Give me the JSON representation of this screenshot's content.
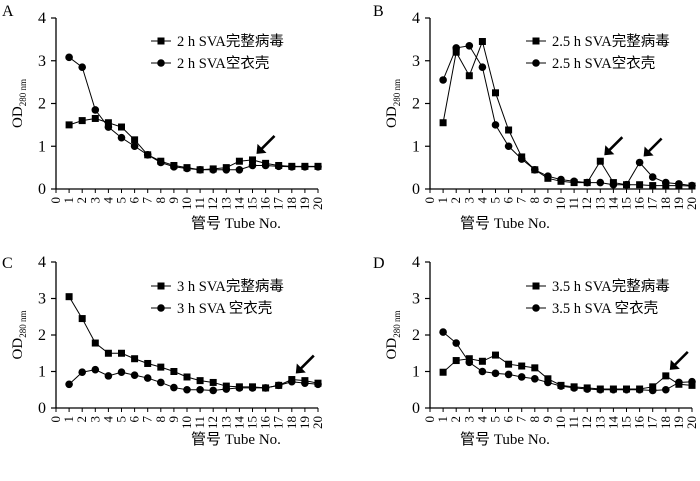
{
  "figure": {
    "ylabel_main": "OD",
    "ylabel_sub": "280 nm",
    "xlabel": "管号 Tube No."
  },
  "chart_data": [
    {
      "panel": "A",
      "type": "line",
      "x": [
        1,
        2,
        3,
        4,
        5,
        6,
        7,
        8,
        9,
        10,
        11,
        12,
        13,
        14,
        15,
        16,
        17,
        18,
        19,
        20
      ],
      "xlim": [
        0,
        20
      ],
      "ylim": [
        0,
        4
      ],
      "yticks": [
        0,
        1,
        2,
        3,
        4
      ],
      "xlabel": "管号 Tube No.",
      "ylabel": "OD280 nm",
      "legend_position": "top-right",
      "arrows_at_tube": [
        15
      ],
      "series": [
        {
          "name": "2 h SVA完整病毒",
          "marker": "square",
          "values": [
            1.5,
            1.6,
            1.65,
            1.55,
            1.45,
            1.15,
            0.8,
            0.65,
            0.55,
            0.5,
            0.45,
            0.47,
            0.5,
            0.65,
            0.68,
            0.6,
            0.55,
            0.53,
            0.53,
            0.53
          ]
        },
        {
          "name": "2 h SVA空衣壳",
          "marker": "circle",
          "values": [
            3.08,
            2.85,
            1.85,
            1.45,
            1.2,
            1.0,
            0.8,
            0.62,
            0.52,
            0.48,
            0.45,
            0.45,
            0.45,
            0.45,
            0.55,
            0.55,
            0.53,
            0.52,
            0.52,
            0.52
          ]
        }
      ]
    },
    {
      "panel": "B",
      "type": "line",
      "x": [
        1,
        2,
        3,
        4,
        5,
        6,
        7,
        8,
        9,
        10,
        11,
        12,
        13,
        14,
        15,
        16,
        17,
        18,
        19,
        20
      ],
      "xlim": [
        0,
        20
      ],
      "ylim": [
        0,
        4
      ],
      "yticks": [
        0,
        1,
        2,
        3,
        4
      ],
      "xlabel": "管号 Tube No.",
      "ylabel": "OD280 nm",
      "legend_position": "top-right",
      "arrows_at_tube": [
        13,
        16
      ],
      "series": [
        {
          "name": "2.5 h SVA完整病毒",
          "marker": "square",
          "values": [
            1.55,
            3.2,
            2.65,
            3.45,
            2.25,
            1.38,
            0.75,
            0.45,
            0.25,
            0.18,
            0.15,
            0.15,
            0.65,
            0.15,
            0.1,
            0.1,
            0.08,
            0.08,
            0.08,
            0.07
          ]
        },
        {
          "name": "2.5 h SVA空衣壳",
          "marker": "circle",
          "values": [
            2.55,
            3.3,
            3.35,
            2.85,
            1.5,
            1.0,
            0.7,
            0.45,
            0.3,
            0.22,
            0.18,
            0.15,
            0.15,
            0.1,
            0.1,
            0.62,
            0.28,
            0.15,
            0.12,
            0.08
          ]
        }
      ]
    },
    {
      "panel": "C",
      "type": "line",
      "x": [
        1,
        2,
        3,
        4,
        5,
        6,
        7,
        8,
        9,
        10,
        11,
        12,
        13,
        14,
        15,
        16,
        17,
        18,
        19,
        20
      ],
      "xlim": [
        0,
        20
      ],
      "ylim": [
        0,
        4
      ],
      "yticks": [
        0,
        1,
        2,
        3,
        4
      ],
      "xlabel": "管号 Tube No.",
      "ylabel": "OD280 nm",
      "legend_position": "top-right",
      "arrows_at_tube": [
        18
      ],
      "series": [
        {
          "name": "3 h SVA完整病毒",
          "marker": "square",
          "values": [
            3.05,
            2.45,
            1.78,
            1.5,
            1.5,
            1.35,
            1.22,
            1.12,
            1.0,
            0.85,
            0.75,
            0.7,
            0.6,
            0.58,
            0.58,
            0.55,
            0.62,
            0.78,
            0.75,
            0.68
          ]
        },
        {
          "name": "3 h SVA 空衣壳",
          "marker": "circle",
          "values": [
            0.65,
            0.98,
            1.05,
            0.88,
            0.98,
            0.9,
            0.82,
            0.7,
            0.56,
            0.5,
            0.5,
            0.48,
            0.52,
            0.55,
            0.55,
            0.55,
            0.62,
            0.72,
            0.68,
            0.65
          ]
        }
      ]
    },
    {
      "panel": "D",
      "type": "line",
      "x": [
        1,
        2,
        3,
        4,
        5,
        6,
        7,
        8,
        9,
        10,
        11,
        12,
        13,
        14,
        15,
        16,
        17,
        18,
        19,
        20
      ],
      "xlim": [
        0,
        20
      ],
      "ylim": [
        0,
        4
      ],
      "yticks": [
        0,
        1,
        2,
        3,
        4
      ],
      "xlabel": "管号 Tube No.",
      "ylabel": "OD280 nm",
      "legend_position": "top-right",
      "arrows_at_tube": [
        18
      ],
      "series": [
        {
          "name": "3.5 h SVA完整病毒",
          "marker": "square",
          "values": [
            0.98,
            1.3,
            1.35,
            1.28,
            1.45,
            1.2,
            1.15,
            1.1,
            0.8,
            0.62,
            0.58,
            0.55,
            0.52,
            0.52,
            0.52,
            0.52,
            0.58,
            0.88,
            0.65,
            0.62
          ]
        },
        {
          "name": "3.5 h SVA 空衣壳",
          "marker": "circle",
          "values": [
            2.08,
            1.78,
            1.25,
            1.0,
            0.95,
            0.92,
            0.85,
            0.8,
            0.7,
            0.6,
            0.55,
            0.52,
            0.5,
            0.5,
            0.5,
            0.5,
            0.48,
            0.5,
            0.7,
            0.72
          ]
        }
      ]
    }
  ]
}
